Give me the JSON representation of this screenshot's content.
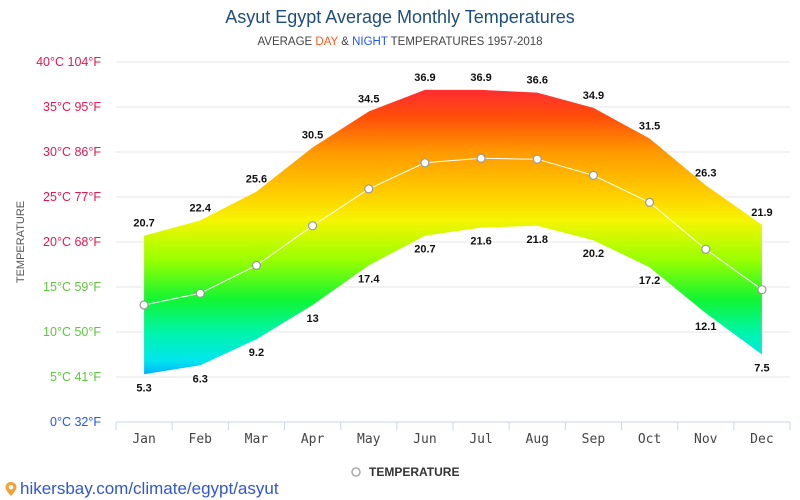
{
  "title": "Asyut Egypt Average Monthly Temperatures",
  "subtitle": {
    "prefix": "AVERAGE ",
    "day": "DAY",
    "mid": " & ",
    "night": "NIGHT",
    "suffix": " TEMPERATURES 1957-2018"
  },
  "footer": {
    "url": "hikersbay.com/climate/egypt/asyut",
    "icon": "map-pin-icon"
  },
  "colors": {
    "title": "#1e4e7c",
    "day": "#ff5a1f",
    "night": "#1f55ff",
    "tick_hot": "#e8174f",
    "tick_mild": "#5fc63e",
    "tick_cold": "#1f55ff",
    "footer_link": "#3056d3"
  },
  "chart_data": {
    "type": "area",
    "title": "Asyut Egypt Average Monthly Temperatures",
    "subtitle": "AVERAGE DAY & NIGHT TEMPERATURES 1957-2018",
    "xlabel": "",
    "ylabel": "TEMPERATURE",
    "categories": [
      "Jan",
      "Feb",
      "Mar",
      "Apr",
      "May",
      "Jun",
      "Jul",
      "Aug",
      "Sep",
      "Oct",
      "Nov",
      "Dec"
    ],
    "ylim": [
      0,
      40
    ],
    "yticks": [
      {
        "value": 40,
        "label": "40°C 104°F"
      },
      {
        "value": 35,
        "label": "35°C 95°F"
      },
      {
        "value": 30,
        "label": "30°C 86°F"
      },
      {
        "value": 25,
        "label": "25°C 77°F"
      },
      {
        "value": 20,
        "label": "20°C 68°F"
      },
      {
        "value": 15,
        "label": "15°C 59°F"
      },
      {
        "value": 10,
        "label": "10°C 50°F"
      },
      {
        "value": 5,
        "label": "5°C 41°F"
      },
      {
        "value": 0,
        "label": "0°C 32°F"
      }
    ],
    "grid": true,
    "legend": {
      "position": "bottom",
      "entries": [
        "TEMPERATURE"
      ]
    },
    "series": [
      {
        "name": "Day (max)",
        "values": [
          20.7,
          22.4,
          25.6,
          30.5,
          34.5,
          36.9,
          36.9,
          36.6,
          34.9,
          31.5,
          26.3,
          21.9
        ]
      },
      {
        "name": "Night (min)",
        "values": [
          5.3,
          6.3,
          9.2,
          13,
          17.4,
          20.7,
          21.6,
          21.8,
          20.2,
          17.2,
          12.1,
          7.5
        ]
      },
      {
        "name": "TEMPERATURE",
        "values": [
          13.0,
          14.3,
          17.4,
          21.8,
          25.9,
          28.8,
          29.3,
          29.2,
          27.4,
          24.4,
          19.2,
          14.7
        ]
      }
    ]
  }
}
